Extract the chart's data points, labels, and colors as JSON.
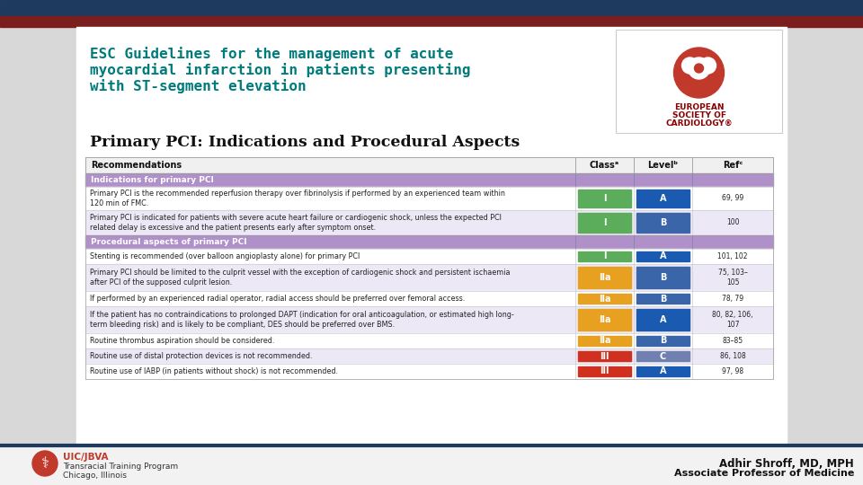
{
  "bg_top_color": "#1e3a5f",
  "bg_red_stripe": "#7a1e1e",
  "bg_main": "#d8d8d8",
  "title_esc_line1": "ESC Guidelines for the management of acute",
  "title_esc_line2": "myocardial infarction in patients presenting",
  "title_esc_line3": "with ST-segment elevation",
  "title_esc_color": "#007b7b",
  "subtitle": "Primary PCI: Indications and Procedural Aspects",
  "subtitle_color": "#111111",
  "section_bg": "#b090c8",
  "rows": [
    {
      "rec": "Primary PCI is the recommended reperfusion therapy over fibrinolysis if performed by an experienced team within\n120 min of FMC.",
      "class_val": "I",
      "class_color": "#5bac5b",
      "level_val": "A",
      "level_color": "#1a5ab0",
      "ref": "69, 99",
      "row_bg": "#ffffff",
      "section_before": "Indications for primary PCI"
    },
    {
      "rec": "Primary PCI is indicated for patients with severe acute heart failure or cardiogenic shock, unless the expected PCI\nrelated delay is excessive and the patient presents early after symptom onset.",
      "class_val": "I",
      "class_color": "#5bac5b",
      "level_val": "B",
      "level_color": "#3a65a8",
      "ref": "100",
      "row_bg": "#ede8f5",
      "section_before": null
    },
    {
      "rec": "Stenting is recommended (over balloon angioplasty alone) for primary PCI",
      "class_val": "I",
      "class_color": "#5bac5b",
      "level_val": "A",
      "level_color": "#1a5ab0",
      "ref": "101, 102",
      "row_bg": "#ffffff",
      "section_before": "Procedural aspects of primary PCI"
    },
    {
      "rec": "Primary PCI should be limited to the culprit vessel with the exception of cardiogenic shock and persistent ischaemia\nafter PCI of the supposed culprit lesion.",
      "class_val": "IIa",
      "class_color": "#e8a020",
      "level_val": "B",
      "level_color": "#3a65a8",
      "ref": "75, 103–\n105",
      "row_bg": "#ede8f5",
      "section_before": null
    },
    {
      "rec": "If performed by an experienced radial operator, radial access should be preferred over femoral access.",
      "class_val": "IIa",
      "class_color": "#e8a020",
      "level_val": "B",
      "level_color": "#3a65a8",
      "ref": "78, 79",
      "row_bg": "#ffffff",
      "section_before": null
    },
    {
      "rec": "If the patient has no contraindications to prolonged DAPT (indication for oral anticoagulation, or estimated high long-\nterm bleeding risk) and is likely to be compliant, DES should be preferred over BMS.",
      "class_val": "IIa",
      "class_color": "#e8a020",
      "level_val": "A",
      "level_color": "#1a5ab0",
      "ref": "80, 82, 106,\n107",
      "row_bg": "#ede8f5",
      "section_before": null
    },
    {
      "rec": "Routine thrombus aspiration should be considered.",
      "class_val": "IIa",
      "class_color": "#e8a020",
      "level_val": "B",
      "level_color": "#3a65a8",
      "ref": "83–85",
      "row_bg": "#ffffff",
      "section_before": null
    },
    {
      "rec": "Routine use of distal protection devices is not recommended.",
      "class_val": "III",
      "class_color": "#d03020",
      "level_val": "C",
      "level_color": "#7080b0",
      "ref": "86, 108",
      "row_bg": "#ede8f5",
      "section_before": null
    },
    {
      "rec": "Routine use of IABP (in patients without shock) is not recommended.",
      "class_val": "III",
      "class_color": "#d03020",
      "level_val": "A",
      "level_color": "#1a5ab0",
      "ref": "97, 98",
      "row_bg": "#ffffff",
      "section_before": null
    }
  ],
  "footer_left1": "UIC/JBVA",
  "footer_left2": "Transracial Training Program",
  "footer_left3": "Chicago, Illinois",
  "footer_right1": "Adhir Shroff, MD, MPH",
  "footer_right2": "Associate Professor of Medicine",
  "footer_border_color": "#1e3a5f"
}
